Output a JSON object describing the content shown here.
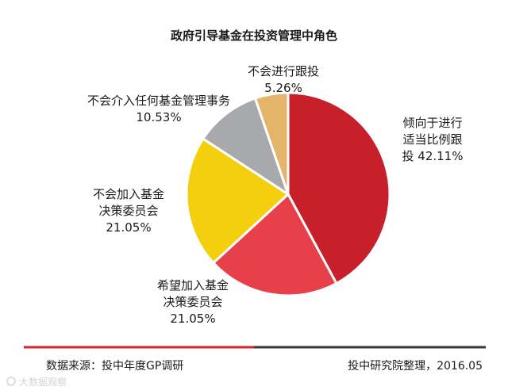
{
  "chart_data": {
    "type": "pie",
    "title": "政府引导基金在投资管理中角色",
    "slices": [
      {
        "label_lines": [
          "倾向于进行",
          "适当比例跟",
          "投 42.11%"
        ],
        "value": 42.11,
        "color": "#c8202a"
      },
      {
        "label_lines": [
          "希望加入基金",
          "决策委员会",
          "21.05%"
        ],
        "value": 21.05,
        "color": "#e8404a"
      },
      {
        "label_lines": [
          "不会加入基金",
          "决策委员会",
          "21.05%"
        ],
        "value": 21.05,
        "color": "#f3cf0e"
      },
      {
        "label_lines": [
          "不会介入任何基金管理事务",
          "10.53%"
        ],
        "value": 10.53,
        "color": "#a7a9ac"
      },
      {
        "label_lines": [
          "不会进行跟投",
          "5.26%"
        ],
        "value": 5.26,
        "color": "#e4b46a"
      }
    ]
  },
  "footer": {
    "source": "数据来源：投中年度GP调研",
    "credit": "投中研究院整理，2016.05"
  },
  "watermark": "大数据观察",
  "colors": {
    "rule_left": "#d9262e",
    "rule_right": "#3a3a3a"
  }
}
